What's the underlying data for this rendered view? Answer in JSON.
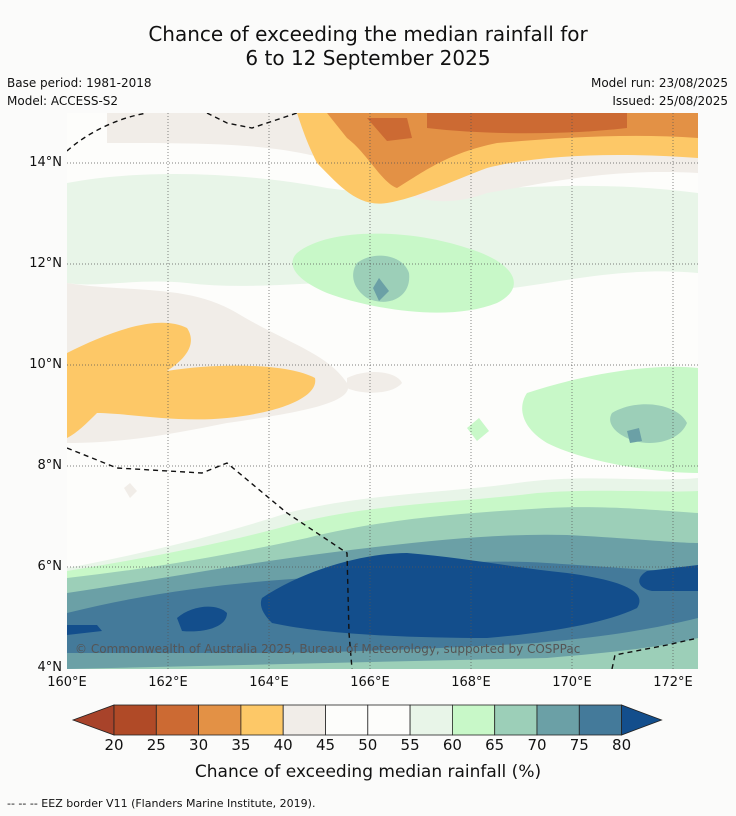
{
  "title_line1": "Chance of exceeding the median rainfall for",
  "title_line2": "6 to 12 September 2025",
  "base_period": "Base period: 1981-2018",
  "model": "Model: ACCESS-S2",
  "model_run": "Model run: 23/08/2025",
  "issued": "Issued: 25/08/2025",
  "copyright": "© Commonwealth of Australia 2025, Bureau of Meteorology, supported by COSPPac",
  "lat_ticks": [
    "14°N",
    "12°N",
    "10°N",
    "8°N",
    "6°N",
    "4°N"
  ],
  "lon_ticks": [
    "160°E",
    "162°E",
    "164°E",
    "166°E",
    "168°E",
    "170°E",
    "172°E"
  ],
  "colorbar": {
    "labels": [
      "20",
      "25",
      "30",
      "35",
      "40",
      "45",
      "50",
      "55",
      "60",
      "65",
      "70",
      "75",
      "80"
    ],
    "colors": [
      "#a8432a",
      "#b04a27",
      "#cc6a33",
      "#e39145",
      "#fdc867",
      "#f1ede8",
      "#fdfdfb",
      "#fdfdfb",
      "#e8f5e8",
      "#c8f8c8",
      "#9ccfb8",
      "#6ba0a6",
      "#447a9a",
      "#134e8c"
    ],
    "title": "Chance of exceeding median rainfall (%)"
  },
  "footnote": "--  --  -- EEZ border V11 (Flanders Marine Institute, 2019)."
}
